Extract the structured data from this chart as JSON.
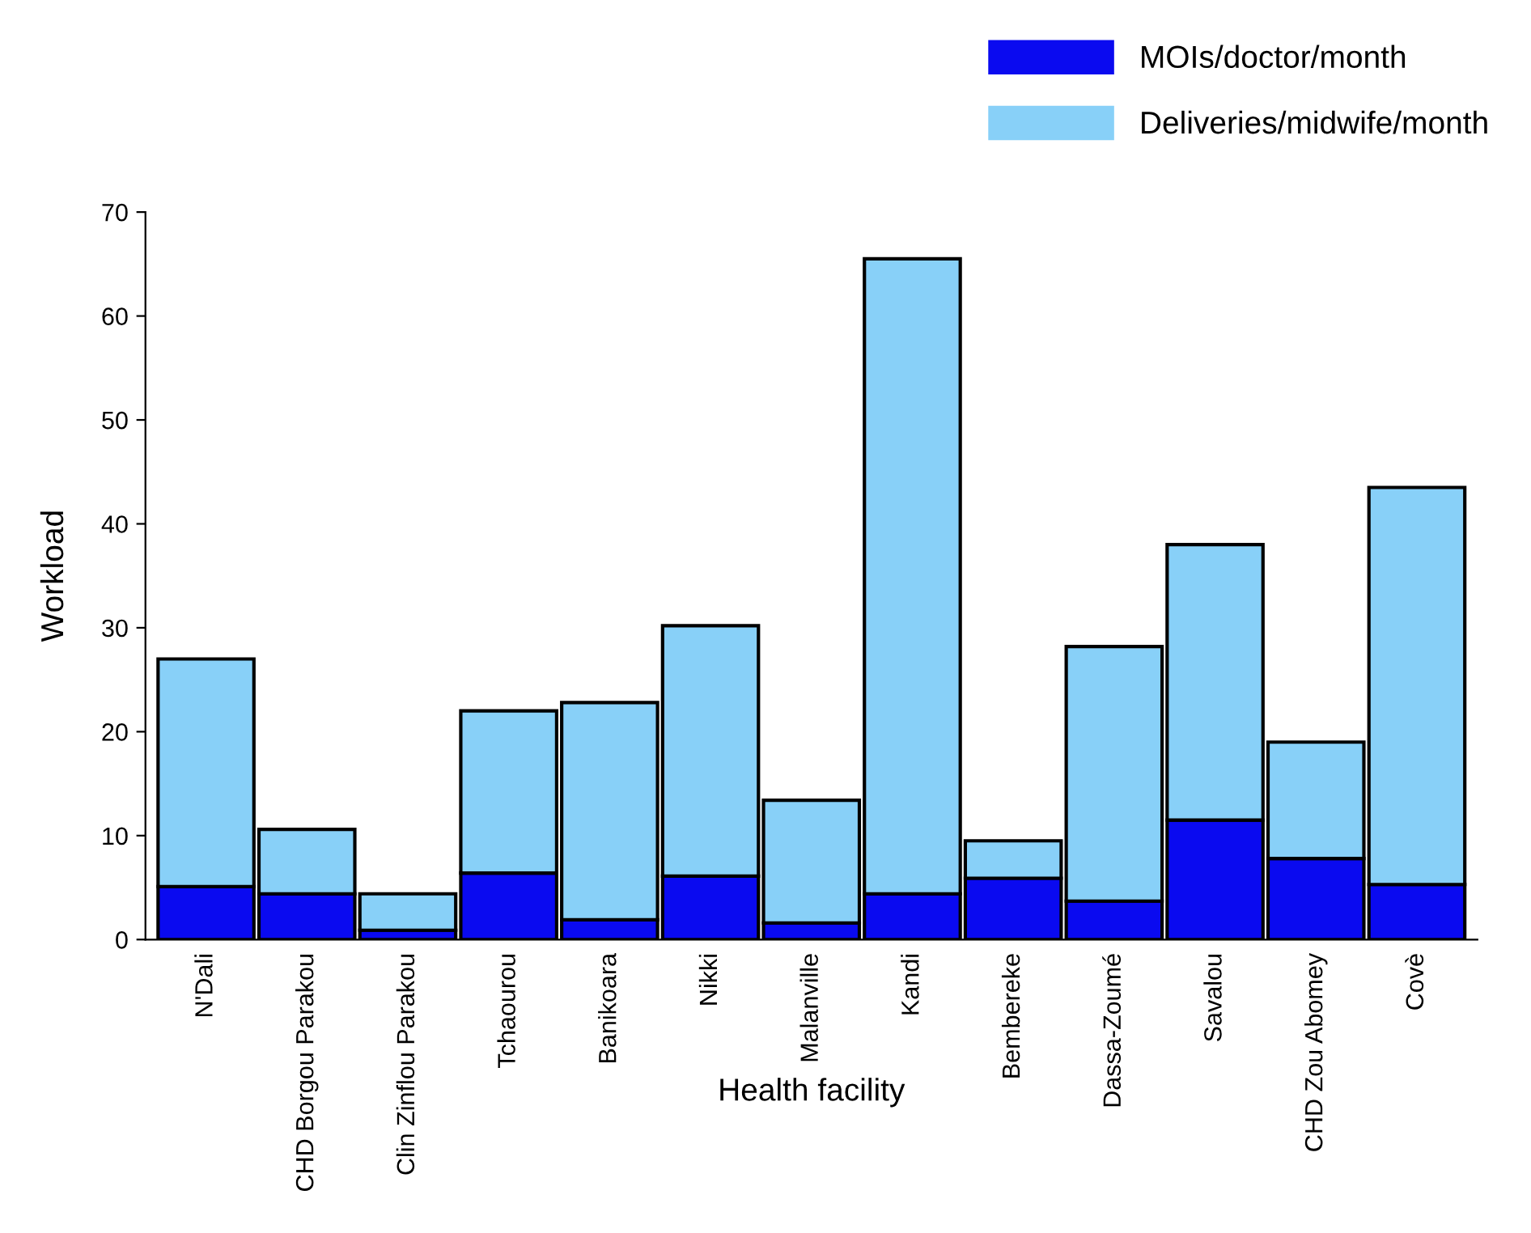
{
  "chart_data": {
    "type": "bar",
    "stacked": true,
    "xlabel": "Health facility",
    "ylabel": "Workload",
    "categories": [
      "N'Dali",
      "CHD Borgou Parakou",
      "Clin Zinflou Parakou",
      "Tchaourou",
      "Banikoara",
      "Nikki",
      "Malanville",
      "Kandi",
      "Bembereke",
      "Dassa-Zoumé",
      "Savalou",
      "CHD Zou Abomey",
      "Covè"
    ],
    "series": [
      {
        "name": "MOIs/doctor/month",
        "color": "#0a0af0",
        "values": [
          5.1,
          4.4,
          0.9,
          6.4,
          1.9,
          6.1,
          1.6,
          4.4,
          5.9,
          3.7,
          11.5,
          7.8,
          5.3
        ]
      },
      {
        "name": "Deliveries/midwife/month",
        "color": "#88d0f8",
        "values": [
          21.9,
          6.2,
          3.5,
          15.6,
          20.9,
          24.1,
          11.8,
          61.1,
          3.6,
          24.5,
          26.5,
          11.2,
          38.2
        ]
      }
    ],
    "ylim": [
      0,
      70
    ],
    "yticks": [
      0,
      10,
      20,
      30,
      40,
      50,
      60,
      70
    ],
    "grid": false,
    "legend": "top right"
  }
}
